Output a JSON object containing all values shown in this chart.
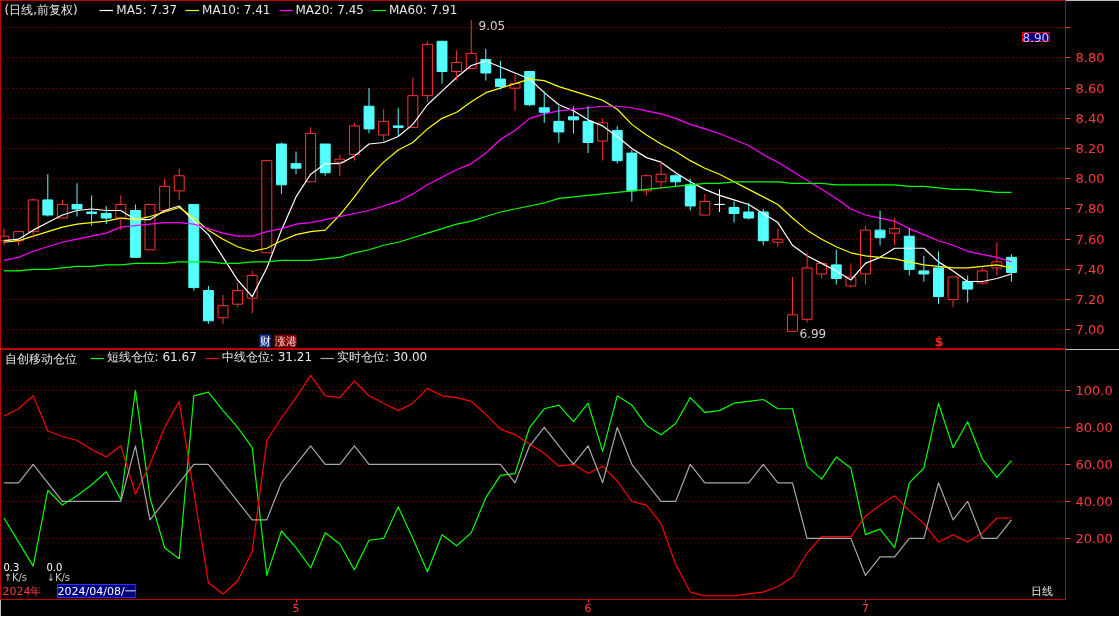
{
  "chart_data": [
    {
      "type": "candlestick",
      "title": "(日线,前复权)",
      "categories": [
        null,
        null,
        null,
        null,
        null,
        null,
        null,
        null,
        null,
        null,
        null,
        null,
        null,
        null,
        null,
        null,
        null,
        null,
        null,
        null,
        "5",
        null,
        null,
        null,
        null,
        null,
        null,
        null,
        null,
        null,
        null,
        null,
        null,
        null,
        null,
        null,
        null,
        null,
        null,
        null,
        "6",
        null,
        null,
        null,
        null,
        null,
        null,
        null,
        null,
        null,
        null,
        null,
        null,
        null,
        null,
        null,
        null,
        null,
        null,
        "7",
        null,
        null,
        null,
        null,
        null,
        null,
        null,
        null,
        null,
        null
      ],
      "ohlc": [
        [
          7.59,
          7.67,
          7.56,
          7.62
        ],
        [
          7.59,
          7.65,
          7.56,
          7.65
        ],
        [
          7.65,
          7.87,
          7.61,
          7.86
        ],
        [
          7.86,
          8.03,
          7.75,
          7.76
        ],
        [
          7.74,
          7.86,
          7.74,
          7.83
        ],
        [
          7.83,
          7.97,
          7.75,
          7.8
        ],
        [
          7.78,
          7.89,
          7.69,
          7.77
        ],
        [
          7.77,
          7.82,
          7.7,
          7.74
        ],
        [
          7.74,
          7.89,
          7.66,
          7.83
        ],
        [
          7.79,
          7.83,
          7.48,
          7.48
        ],
        [
          7.53,
          7.83,
          7.53,
          7.83
        ],
        [
          7.79,
          8.0,
          7.79,
          7.95
        ],
        [
          7.92,
          8.07,
          7.86,
          8.02
        ],
        [
          7.83,
          7.83,
          7.26,
          7.28
        ],
        [
          7.26,
          7.29,
          7.04,
          7.06
        ],
        [
          7.08,
          7.23,
          7.04,
          7.16
        ],
        [
          7.17,
          7.31,
          7.15,
          7.26
        ],
        [
          7.21,
          7.39,
          7.11,
          7.36
        ],
        [
          7.51,
          8.12,
          7.51,
          8.12
        ],
        [
          8.23,
          8.24,
          7.9,
          7.96
        ],
        [
          8.1,
          8.18,
          8.03,
          8.07
        ],
        [
          7.98,
          8.34,
          7.98,
          8.3
        ],
        [
          8.23,
          8.23,
          8.02,
          8.04
        ],
        [
          8.11,
          8.16,
          8.02,
          8.13
        ],
        [
          8.16,
          8.37,
          8.12,
          8.35
        ],
        [
          8.48,
          8.6,
          8.3,
          8.33
        ],
        [
          8.29,
          8.46,
          8.25,
          8.38
        ],
        [
          8.35,
          8.47,
          8.28,
          8.34
        ],
        [
          8.34,
          8.67,
          8.34,
          8.55
        ],
        [
          8.55,
          8.91,
          8.51,
          8.89
        ],
        [
          8.91,
          8.91,
          8.63,
          8.71
        ],
        [
          8.71,
          8.85,
          8.65,
          8.77
        ],
        [
          8.73,
          9.05,
          8.73,
          8.83
        ],
        [
          8.79,
          8.86,
          8.65,
          8.7
        ],
        [
          8.66,
          8.78,
          8.59,
          8.61
        ],
        [
          8.6,
          8.69,
          8.45,
          8.63
        ],
        [
          8.71,
          8.71,
          8.48,
          8.49
        ],
        [
          8.47,
          8.58,
          8.37,
          8.44
        ],
        [
          8.38,
          8.48,
          8.24,
          8.31
        ],
        [
          8.41,
          8.48,
          8.3,
          8.39
        ],
        [
          8.38,
          8.48,
          8.17,
          8.24
        ],
        [
          8.25,
          8.4,
          8.12,
          8.37
        ],
        [
          8.32,
          8.35,
          8.1,
          8.12
        ],
        [
          8.17,
          8.19,
          7.85,
          7.92
        ],
        [
          7.92,
          8.03,
          7.89,
          8.02
        ],
        [
          7.98,
          8.11,
          7.93,
          8.03
        ],
        [
          8.02,
          8.03,
          7.95,
          7.98
        ],
        [
          7.96,
          8.0,
          7.79,
          7.82
        ],
        [
          7.76,
          7.9,
          7.76,
          7.85
        ],
        [
          7.83,
          7.93,
          7.78,
          7.83
        ],
        [
          7.81,
          7.85,
          7.71,
          7.77
        ],
        [
          7.78,
          7.84,
          7.73,
          7.74
        ],
        [
          7.78,
          7.8,
          7.56,
          7.59
        ],
        [
          7.58,
          7.67,
          7.55,
          7.6
        ],
        [
          6.99,
          7.35,
          6.99,
          7.1
        ],
        [
          7.07,
          7.51,
          7.05,
          7.41
        ],
        [
          7.37,
          7.45,
          7.34,
          7.44
        ],
        [
          7.43,
          7.53,
          7.3,
          7.34
        ],
        [
          7.29,
          7.44,
          7.28,
          7.35
        ],
        [
          7.37,
          7.69,
          7.3,
          7.66
        ],
        [
          7.66,
          7.79,
          7.56,
          7.61
        ],
        [
          7.64,
          7.74,
          7.56,
          7.67
        ],
        [
          7.62,
          7.67,
          7.36,
          7.4
        ],
        [
          7.39,
          7.49,
          7.32,
          7.37
        ],
        [
          7.41,
          7.52,
          7.17,
          7.22
        ],
        [
          7.2,
          7.35,
          7.15,
          7.35
        ],
        [
          7.32,
          7.36,
          7.18,
          7.27
        ],
        [
          7.31,
          7.41,
          7.3,
          7.39
        ],
        [
          7.41,
          7.58,
          7.36,
          7.45
        ],
        [
          7.48,
          7.5,
          7.32,
          7.38
        ]
      ],
      "colors": [
        "#ff3232",
        "#ff3232",
        "#ff3232",
        "#54ffff",
        "#ff3232",
        "#54ffff",
        "#54ffff",
        "#54ffff",
        "#ff3232",
        "#54ffff",
        "#ff3232",
        "#ff3232",
        "#ff3232",
        "#54ffff",
        "#54ffff",
        "#ff3232",
        "#ff3232",
        "#ff3232",
        "#ff3232",
        "#54ffff",
        "#54ffff",
        "#ff3232",
        "#54ffff",
        "#ff3232",
        "#ff3232",
        "#54ffff",
        "#ff3232",
        "#54ffff",
        "#ff3232",
        "#ff3232",
        "#54ffff",
        "#ff3232",
        "#ff3232",
        "#54ffff",
        "#54ffff",
        "#ff3232",
        "#54ffff",
        "#54ffff",
        "#54ffff",
        "#54ffff",
        "#54ffff",
        "#ff3232",
        "#54ffff",
        "#54ffff",
        "#ff3232",
        "#ff3232",
        "#54ffff",
        "#54ffff",
        "#ff3232",
        "#ffffff",
        "#54ffff",
        "#54ffff",
        "#54ffff",
        "#ff3232",
        "#ff3232",
        "#ff3232",
        "#ff3232",
        "#54ffff",
        "#ff3232",
        "#ff3232",
        "#54ffff",
        "#ff3232",
        "#54ffff",
        "#54ffff",
        "#54ffff",
        "#ff3232",
        "#54ffff",
        "#ff3232",
        "#ff3232",
        "#54ffff"
      ],
      "series": [
        {
          "type": "line",
          "name": "MA5: 7.37",
          "color": "#ffffff",
          "values": [
            7.59,
            7.6,
            7.66,
            7.71,
            7.76,
            7.79,
            7.8,
            7.79,
            7.79,
            7.73,
            7.73,
            7.79,
            7.82,
            7.72,
            7.63,
            7.48,
            7.33,
            7.22,
            7.41,
            7.66,
            7.88,
            8.03,
            8.1,
            8.1,
            8.15,
            8.23,
            8.24,
            8.28,
            8.36,
            8.49,
            8.58,
            8.67,
            8.75,
            8.78,
            8.74,
            8.7,
            8.66,
            8.57,
            8.49,
            8.45,
            8.39,
            8.35,
            8.28,
            8.2,
            8.14,
            8.11,
            8.04,
            7.98,
            7.93,
            7.89,
            7.86,
            7.83,
            7.77,
            7.71,
            7.56,
            7.49,
            7.44,
            7.39,
            7.33,
            7.44,
            7.48,
            7.54,
            7.54,
            7.54,
            7.45,
            7.39,
            7.32,
            7.32,
            7.34,
            7.37
          ]
        },
        {
          "type": "line",
          "name": "MA10: 7.41",
          "color": "#ffff00",
          "values": [
            7.58,
            7.59,
            7.62,
            7.65,
            7.68,
            7.7,
            7.71,
            7.72,
            7.74,
            7.73,
            7.75,
            7.78,
            7.81,
            7.74,
            7.66,
            7.6,
            7.55,
            7.52,
            7.54,
            7.59,
            7.63,
            7.65,
            7.66,
            7.76,
            7.88,
            8.01,
            8.11,
            8.19,
            8.24,
            8.33,
            8.4,
            8.44,
            8.51,
            8.57,
            8.6,
            8.63,
            8.66,
            8.65,
            8.61,
            8.58,
            8.55,
            8.52,
            8.46,
            8.36,
            8.29,
            8.23,
            8.18,
            8.12,
            8.07,
            8.03,
            7.98,
            7.93,
            7.88,
            7.83,
            7.74,
            7.66,
            7.6,
            7.55,
            7.51,
            7.49,
            7.48,
            7.47,
            7.45,
            7.43,
            7.42,
            7.41,
            7.41,
            7.42,
            7.43,
            7.41
          ]
        },
        {
          "type": "line",
          "name": "MA20: 7.45",
          "color": "#ff00ff",
          "values": [
            7.46,
            7.48,
            7.52,
            7.55,
            7.58,
            7.6,
            7.62,
            7.64,
            7.68,
            7.69,
            7.7,
            7.71,
            7.71,
            7.7,
            7.67,
            7.64,
            7.62,
            7.62,
            7.65,
            7.67,
            7.7,
            7.71,
            7.73,
            7.75,
            7.77,
            7.79,
            7.82,
            7.85,
            7.9,
            7.96,
            8.01,
            8.06,
            8.1,
            8.17,
            8.26,
            8.32,
            8.4,
            8.43,
            8.45,
            8.46,
            8.47,
            8.48,
            8.48,
            8.47,
            8.45,
            8.43,
            8.4,
            8.36,
            8.33,
            8.3,
            8.26,
            8.22,
            8.16,
            8.11,
            8.05,
            7.99,
            7.93,
            7.87,
            7.8,
            7.76,
            7.74,
            7.72,
            7.67,
            7.63,
            7.59,
            7.56,
            7.52,
            7.5,
            7.48,
            7.45
          ]
        },
        {
          "type": "line",
          "name": "MA60: 7.91",
          "color": "#00ff00",
          "values": [
            7.39,
            7.39,
            7.4,
            7.4,
            7.41,
            7.42,
            7.42,
            7.43,
            7.43,
            7.44,
            7.44,
            7.44,
            7.45,
            7.45,
            7.45,
            7.44,
            7.44,
            7.45,
            7.45,
            7.46,
            7.46,
            7.46,
            7.47,
            7.48,
            7.51,
            7.53,
            7.56,
            7.58,
            7.61,
            7.64,
            7.67,
            7.7,
            7.72,
            7.75,
            7.78,
            7.8,
            7.82,
            7.84,
            7.87,
            7.88,
            7.89,
            7.9,
            7.91,
            7.92,
            7.93,
            7.94,
            7.95,
            7.96,
            7.97,
            7.97,
            7.98,
            7.98,
            7.98,
            7.98,
            7.97,
            7.97,
            7.97,
            7.96,
            7.96,
            7.96,
            7.96,
            7.96,
            7.95,
            7.95,
            7.94,
            7.93,
            7.93,
            7.92,
            7.91,
            7.91
          ]
        }
      ],
      "ylim": [
        6.87,
        9.18
      ],
      "yticks": [
        {
          "value": 7.0,
          "label": "7.00"
        },
        {
          "value": 7.2,
          "label": "7.20"
        },
        {
          "value": 7.4,
          "label": "7.40"
        },
        {
          "value": 7.6,
          "label": "7.60"
        },
        {
          "value": 7.8,
          "label": "7.80"
        },
        {
          "value": 8.0,
          "label": "8.00"
        },
        {
          "value": 8.2,
          "label": "8.20"
        },
        {
          "value": 8.4,
          "label": "8.40"
        },
        {
          "value": 8.6,
          "label": "8.60"
        },
        {
          "value": 8.8,
          "label": "8.80"
        },
        {
          "value": 9.0,
          "label": null
        }
      ],
      "grid": "y",
      "legend": "top left",
      "tick_labels": "y",
      "annotations": [
        "9.05",
        "6.99",
        "8.90",
        "财",
        "涨港",
        "$"
      ]
    },
    {
      "type": "line",
      "title": "自创移动仓位",
      "categories": [
        null,
        null,
        null,
        null,
        null,
        null,
        null,
        null,
        null,
        null,
        null,
        null,
        null,
        null,
        null,
        null,
        null,
        null,
        null,
        null,
        "5",
        null,
        null,
        null,
        null,
        null,
        null,
        null,
        null,
        null,
        null,
        null,
        null,
        null,
        null,
        null,
        null,
        null,
        null,
        null,
        "6",
        null,
        null,
        null,
        null,
        null,
        null,
        null,
        null,
        null,
        null,
        null,
        null,
        null,
        null,
        null,
        null,
        null,
        null,
        "7",
        null,
        null,
        null,
        null,
        null,
        null,
        null,
        null,
        null,
        null
      ],
      "series": [
        {
          "name": "短线仓位: 61.67",
          "color": "#00ff00",
          "values": [
            31,
            18,
            5,
            46,
            38,
            43,
            49,
            56,
            41,
            100,
            42,
            15,
            9,
            97,
            99,
            89,
            80,
            69,
            0,
            24,
            15,
            4,
            23,
            17,
            3,
            19,
            20,
            37,
            20,
            2,
            22,
            16,
            23,
            42,
            54,
            55,
            80,
            90,
            92,
            83,
            93,
            67,
            97,
            92,
            81,
            76,
            82,
            96,
            88,
            89,
            93,
            94,
            95,
            90,
            90,
            59,
            52,
            64,
            58,
            22,
            25,
            15,
            50,
            58,
            93,
            69,
            83,
            63,
            53,
            62
          ]
        },
        {
          "name": "中线仓位: 31.21",
          "color": "#ff0000",
          "values": [
            86,
            90,
            97,
            78,
            75,
            73,
            68,
            64,
            70,
            44,
            60,
            80,
            94,
            45,
            -4,
            -10,
            -3,
            13,
            73,
            85,
            96,
            108,
            97,
            96,
            105,
            97,
            93,
            89,
            93,
            101,
            97,
            96,
            94,
            87,
            79,
            76,
            71,
            66,
            59,
            60,
            55,
            59,
            51,
            40,
            38,
            28,
            6,
            -9,
            -11,
            -11,
            -11,
            -10,
            -9,
            -6,
            -1,
            12,
            21,
            21,
            21,
            32,
            38,
            43,
            35,
            28,
            18,
            22,
            18,
            23,
            31,
            31
          ]
        },
        {
          "name": "实时仓位: 30.00",
          "color": "#a8a8a8",
          "values": [
            50,
            50,
            60,
            50,
            40,
            40,
            40,
            40,
            40,
            70,
            30,
            40,
            50,
            60,
            60,
            50,
            40,
            30,
            30,
            50,
            60,
            70,
            60,
            60,
            70,
            60,
            60,
            60,
            60,
            60,
            60,
            60,
            60,
            60,
            60,
            50,
            70,
            80,
            70,
            60,
            70,
            50,
            80,
            60,
            50,
            40,
            40,
            60,
            50,
            50,
            50,
            50,
            60,
            50,
            50,
            20,
            20,
            20,
            20,
            0,
            10,
            10,
            20,
            20,
            50,
            30,
            40,
            20,
            20,
            30
          ]
        }
      ],
      "ylim": [
        -13,
        122
      ],
      "yticks": [
        {
          "value": 20,
          "label": "20.00"
        },
        {
          "value": 40,
          "label": "40.00"
        },
        {
          "value": 60,
          "label": "60.00"
        },
        {
          "value": 80,
          "label": "80.00"
        },
        {
          "value": 100,
          "label": "100.0"
        }
      ],
      "grid": "y",
      "legend": "top left",
      "annotations": [
        "2024年",
        "2024/04/08/一",
        "日线",
        "0.3",
        "↑K/s",
        "0.0",
        "↓K/s"
      ]
    }
  ]
}
